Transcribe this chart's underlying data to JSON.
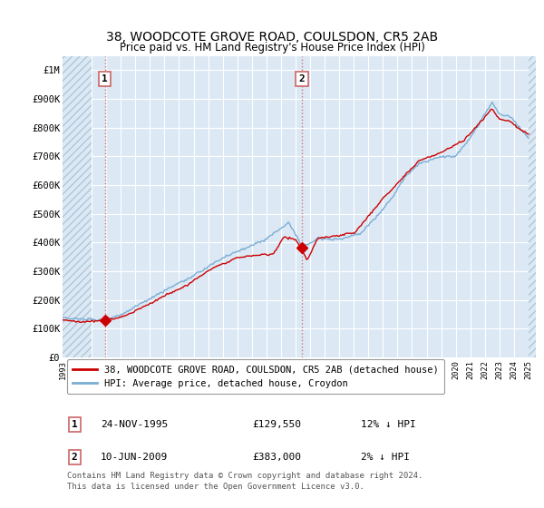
{
  "title": "38, WOODCOTE GROVE ROAD, COULSDON, CR5 2AB",
  "subtitle": "Price paid vs. HM Land Registry's House Price Index (HPI)",
  "legend_line1": "38, WOODCOTE GROVE ROAD, COULSDON, CR5 2AB (detached house)",
  "legend_line2": "HPI: Average price, detached house, Croydon",
  "footer_line1": "Contains HM Land Registry data © Crown copyright and database right 2024.",
  "footer_line2": "This data is licensed under the Open Government Licence v3.0.",
  "annotation1_label": "1",
  "annotation1_date": "24-NOV-1995",
  "annotation1_price": "£129,550",
  "annotation1_hpi": "12% ↓ HPI",
  "annotation2_label": "2",
  "annotation2_date": "10-JUN-2009",
  "annotation2_price": "£383,000",
  "annotation2_hpi": "2% ↓ HPI",
  "red_color": "#cc0000",
  "blue_color": "#7aadd4",
  "bg_color": "#dce9f5",
  "hatch_color": "#afc6d8",
  "grid_color": "#ffffff",
  "vline_color": "#cc6666",
  "marker_color": "#cc0000",
  "ylim": [
    0,
    1050000
  ],
  "yticks": [
    0,
    100000,
    200000,
    300000,
    400000,
    500000,
    600000,
    700000,
    800000,
    900000,
    1000000
  ],
  "ytick_labels": [
    "£0",
    "£100K",
    "£200K",
    "£300K",
    "£400K",
    "£500K",
    "£600K",
    "£700K",
    "£800K",
    "£900K",
    "£1M"
  ],
  "sale1_x": 1995.9,
  "sale1_y": 129550,
  "sale2_x": 2009.44,
  "sale2_y": 383000,
  "vline1_x": 1995.9,
  "vline2_x": 2009.44,
  "xmin": 1993.0,
  "xmax": 2025.5,
  "hatch_left_end": 1995.0,
  "hatch_right_start": 2025.0
}
